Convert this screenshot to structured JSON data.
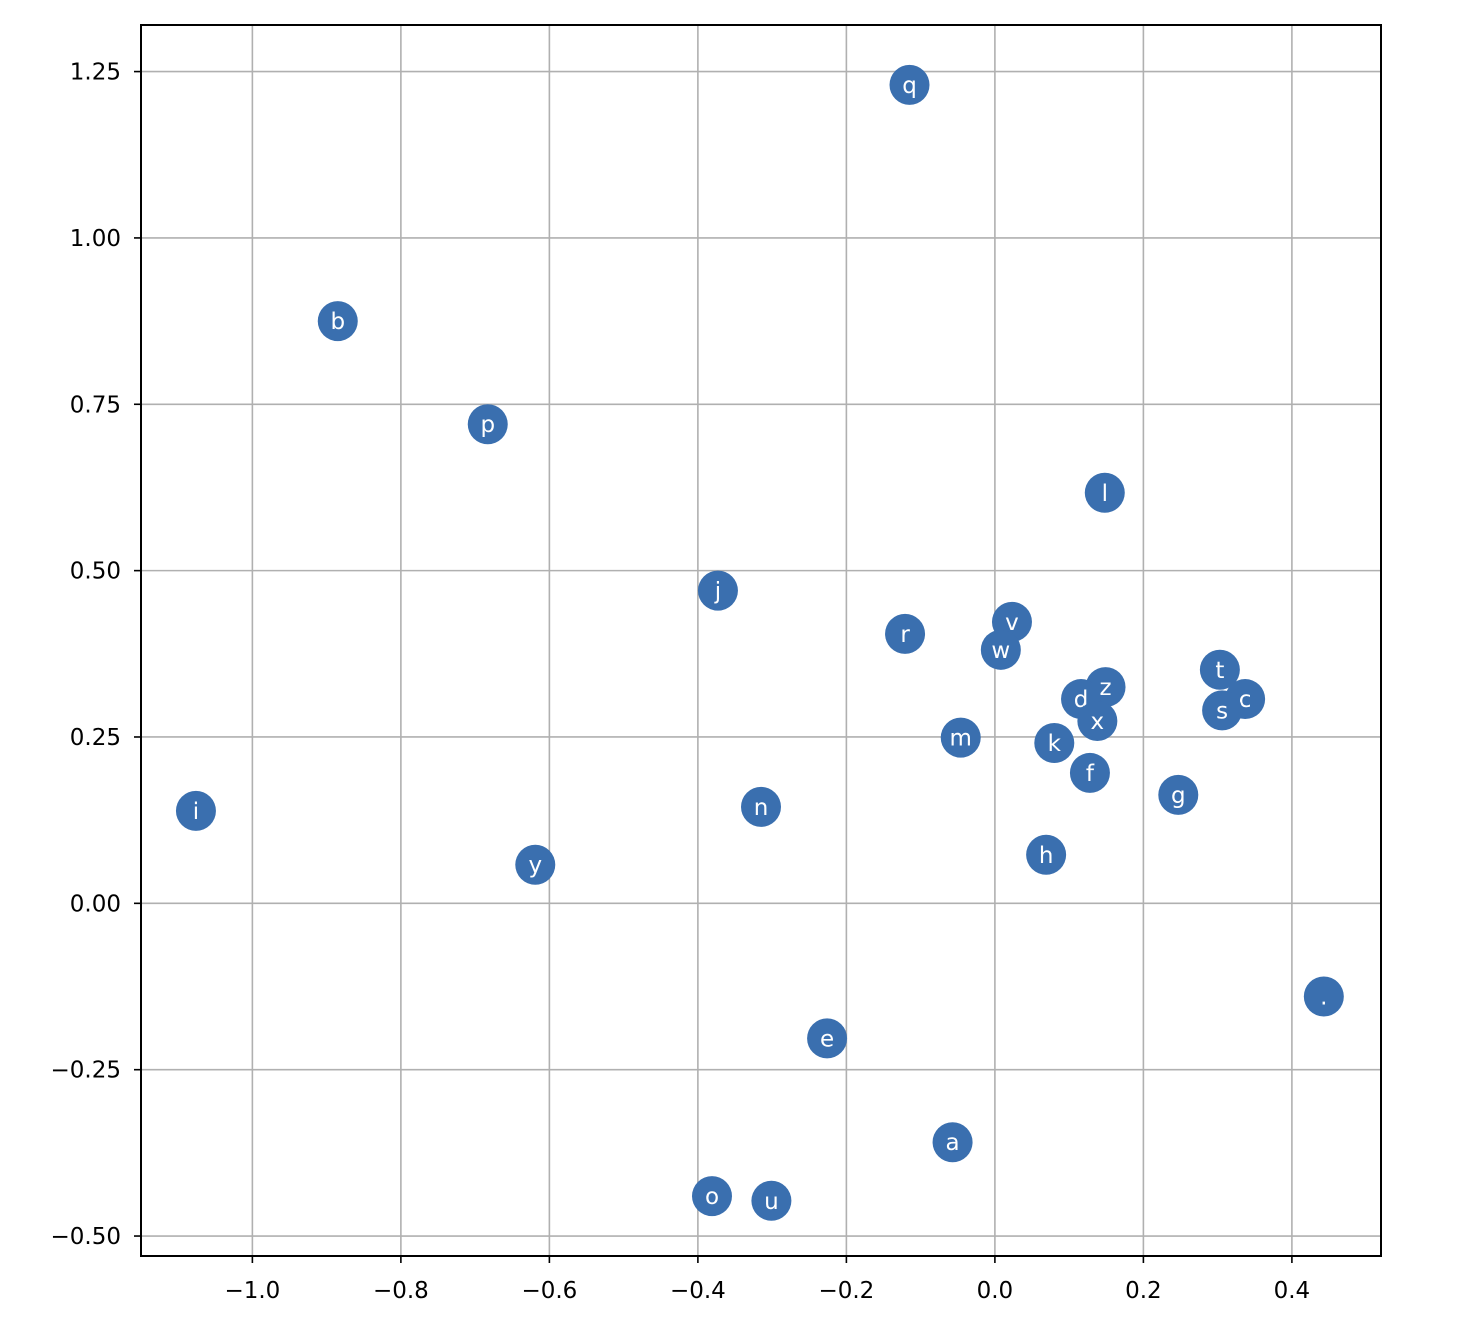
{
  "chart_data": {
    "type": "scatter",
    "title": "",
    "xlabel": "",
    "ylabel": "",
    "xlim": [
      -1.15,
      0.52
    ],
    "ylim": [
      -0.53,
      1.32
    ],
    "grid": true,
    "marker_color": "#3a6faf",
    "label_color": "#ffffff",
    "x_ticks": [
      -1.0,
      -0.8,
      -0.6,
      -0.4,
      -0.2,
      0.0,
      0.2,
      0.4
    ],
    "x_tick_labels": [
      "−1.0",
      "−0.8",
      "−0.6",
      "−0.4",
      "−0.2",
      "0.0",
      "0.2",
      "0.4"
    ],
    "y_ticks": [
      -0.5,
      -0.25,
      0.0,
      0.25,
      0.5,
      0.75,
      1.0,
      1.25
    ],
    "y_tick_labels": [
      "−0.50",
      "−0.25",
      "0.00",
      "0.25",
      "0.50",
      "0.75",
      "1.00",
      "1.25"
    ],
    "points": [
      {
        "label": "q",
        "x": -0.115,
        "y": 1.23
      },
      {
        "label": "b",
        "x": -0.885,
        "y": 0.875
      },
      {
        "label": "p",
        "x": -0.683,
        "y": 0.72
      },
      {
        "label": "l",
        "x": 0.148,
        "y": 0.617
      },
      {
        "label": "j",
        "x": -0.373,
        "y": 0.47
      },
      {
        "label": "v",
        "x": 0.023,
        "y": 0.423
      },
      {
        "label": "r",
        "x": -0.121,
        "y": 0.405
      },
      {
        "label": "w",
        "x": 0.008,
        "y": 0.381
      },
      {
        "label": "t",
        "x": 0.303,
        "y": 0.351
      },
      {
        "label": "z",
        "x": 0.149,
        "y": 0.325
      },
      {
        "label": "d",
        "x": 0.116,
        "y": 0.307
      },
      {
        "label": "c",
        "x": 0.337,
        "y": 0.307
      },
      {
        "label": "s",
        "x": 0.306,
        "y": 0.29
      },
      {
        "label": "x",
        "x": 0.138,
        "y": 0.274
      },
      {
        "label": "m",
        "x": -0.046,
        "y": 0.249
      },
      {
        "label": "k",
        "x": 0.08,
        "y": 0.241
      },
      {
        "label": "f",
        "x": 0.128,
        "y": 0.196
      },
      {
        "label": "g",
        "x": 0.247,
        "y": 0.163
      },
      {
        "label": "i",
        "x": -1.076,
        "y": 0.139
      },
      {
        "label": "n",
        "x": -0.315,
        "y": 0.145
      },
      {
        "label": "h",
        "x": 0.069,
        "y": 0.073
      },
      {
        "label": "y",
        "x": -0.619,
        "y": 0.058
      },
      {
        "label": ".",
        "x": 0.443,
        "y": -0.14
      },
      {
        "label": "e",
        "x": -0.226,
        "y": -0.203
      },
      {
        "label": "a",
        "x": -0.057,
        "y": -0.359
      },
      {
        "label": "o",
        "x": -0.381,
        "y": -0.44
      },
      {
        "label": "u",
        "x": -0.301,
        "y": -0.447
      }
    ]
  }
}
